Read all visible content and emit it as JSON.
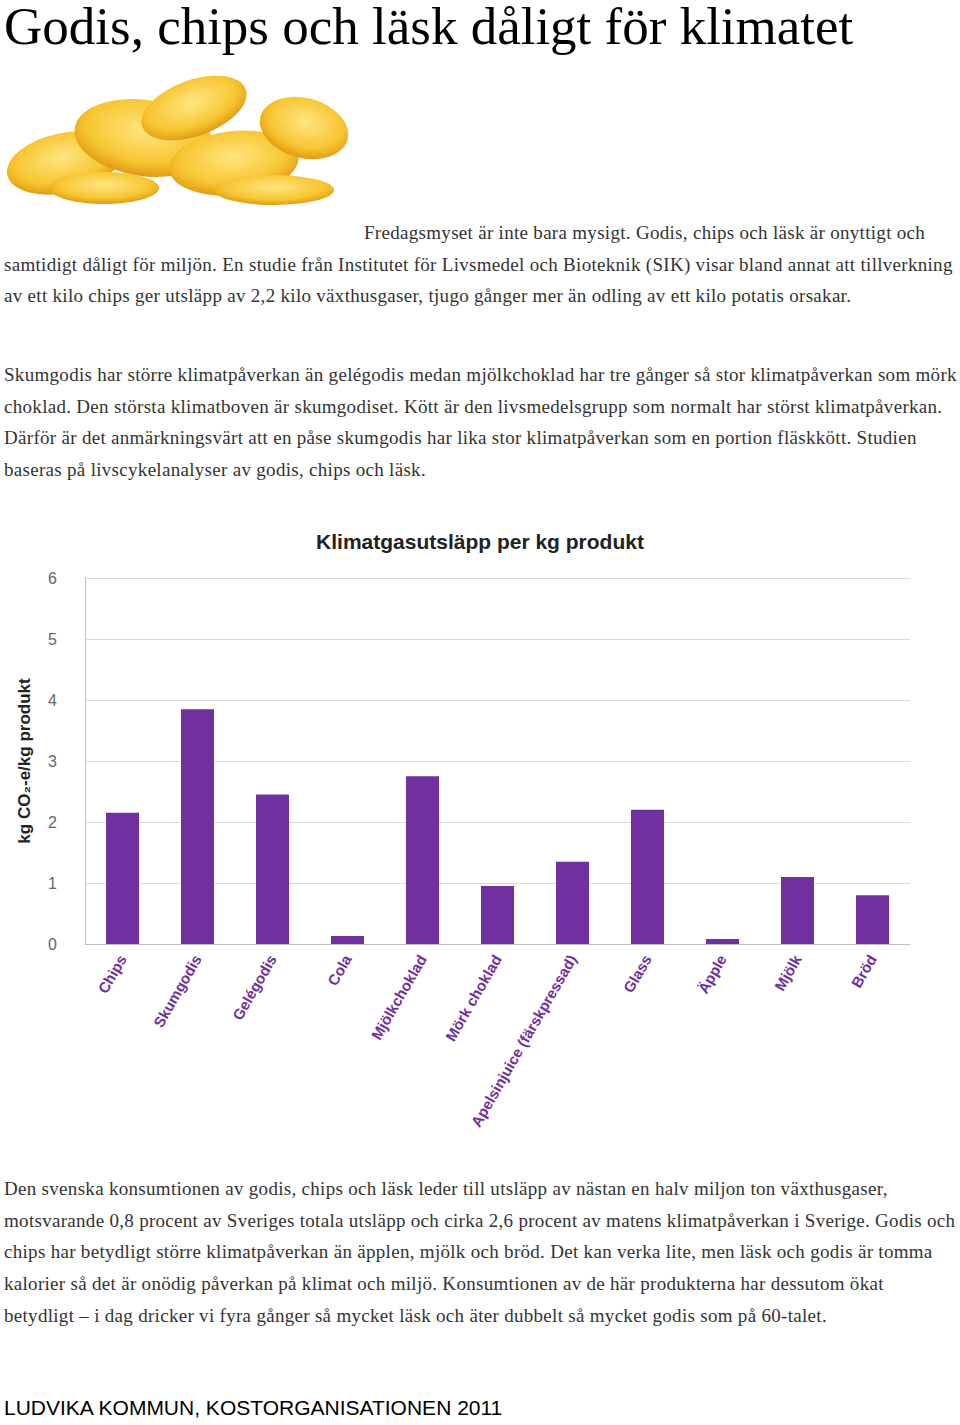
{
  "title": "Godis, chips och läsk dåligt för klimatet",
  "paragraphs": [
    "Fredagsmyset är inte bara mysigt. Godis, chips och läsk är onyttigt och samtidigt dåligt för miljön. En studie från Institutet för Livsmedel och Bioteknik (SIK) visar bland annat att tillverkning av ett kilo chips ger utsläpp av 2,2 kilo växthusgaser, tjugo gånger mer än odling av ett kilo potatis orsakar.",
    "Skumgodis har större klimatpåverkan än gelégodis medan mjölkchoklad har tre gånger så stor klimatpåverkan som mörk choklad. Den största klimatboven är skumgodiset. Kött är den livsmedelsgrupp som normalt har störst klimatpåverkan. Därför är det anmärkningsvärt att en påse skumgodis har lika stor klimatpåverkan som en portion fläskkött. Studien baseras på livscykelanalyser av godis, chips och läsk."
  ],
  "chart_data": {
    "type": "bar",
    "title": "Klimatgasutsläpp per kg produkt",
    "y_label": "kg CO₂-e/kg produkt",
    "categories": [
      "Chips",
      "Skumgodis",
      "Gelégodis",
      "Cola",
      "Mjölkchoklad",
      "Mörk choklad",
      "Apelsinjuice (färskpressad)",
      "Glass",
      "Äpple",
      "Mjölk",
      "Bröd"
    ],
    "values": [
      2.15,
      3.85,
      2.45,
      0.13,
      2.75,
      0.95,
      1.35,
      2.2,
      0.08,
      1.1,
      0.8
    ],
    "color": "#7030a0",
    "ylim": [
      0,
      6
    ],
    "yticks": [
      0,
      1,
      2,
      3,
      4,
      5,
      6
    ],
    "grid": true
  },
  "closing_paragraph": "Den svenska konsumtionen av godis, chips och läsk leder till utsläpp av nästan en halv miljon ton växthusgaser, motsvarande 0,8 procent av Sveriges totala utsläpp och cirka 2,6 procent av matens klimatpåverkan i Sverige. Godis och chips har betydligt större klimatpåverkan än äpplen, mjölk och bröd. Det kan verka lite, men läsk och godis är tomma kalorier så det är onödig påverkan på klimat och miljö. Konsumtionen av de här produkterna har dessutom ökat betydligt – i dag dricker vi fyra gånger så mycket läsk och äter dubbelt så mycket godis som på 60-talet.",
  "footer": "LUDVIKA KOMMUN, KOSTORGANISATIONEN 2011"
}
